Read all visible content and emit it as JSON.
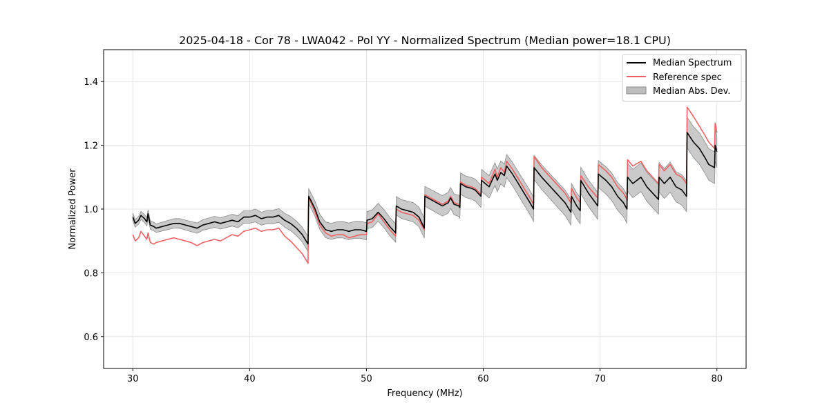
{
  "chart_data": {
    "type": "line",
    "title": "2025-04-18 - Cor 78 - LWA042 - Pol YY - Normalized Spectrum (Median power=18.1 CPU)",
    "xlabel": "Frequency (MHz)",
    "ylabel": "Normalized Power",
    "xlim": [
      27.5,
      82.5
    ],
    "ylim": [
      0.5,
      1.5
    ],
    "xticks": [
      30,
      40,
      50,
      60,
      70,
      80
    ],
    "yticks": [
      0.6,
      0.8,
      1.0,
      1.2,
      1.4
    ],
    "xtick_labels": [
      "30",
      "40",
      "50",
      "60",
      "70",
      "80"
    ],
    "ytick_labels": [
      "0.6",
      "0.8",
      "1.0",
      "1.2",
      "1.4"
    ],
    "grid": true,
    "legend_position": "top-right",
    "colors": {
      "median": "#000000",
      "reference": "#f06262",
      "mad_fill": "#bdbdbd",
      "mad_edge": "#8a8a8a",
      "grid": "#e4e4e4"
    },
    "series": [
      {
        "name": "Median Spectrum",
        "x": [
          30.0,
          30.2,
          30.5,
          30.7,
          31.0,
          31.2,
          31.3,
          31.5,
          31.8,
          32.0,
          32.5,
          33.0,
          33.5,
          34.0,
          34.5,
          35.0,
          35.5,
          36.0,
          36.5,
          37.0,
          37.5,
          38.0,
          38.5,
          39.0,
          39.5,
          40.0,
          40.5,
          41.0,
          41.5,
          42.0,
          42.5,
          43.0,
          43.5,
          44.0,
          44.5,
          45.0,
          45.05,
          45.2,
          45.6,
          46.0,
          46.5,
          47.0,
          47.5,
          48.0,
          48.5,
          49.0,
          49.5,
          50.0,
          50.05,
          50.5,
          51.0,
          51.5,
          52.0,
          52.5,
          52.55,
          53.0,
          53.5,
          54.0,
          54.5,
          54.95,
          55.0,
          55.5,
          56.0,
          56.5,
          57.0,
          57.2,
          57.5,
          57.9,
          58.0,
          58.05,
          58.5,
          59.0,
          59.3,
          59.8,
          59.85,
          60.5,
          61.0,
          61.2,
          61.5,
          61.8,
          62.0,
          62.5,
          63.0,
          63.5,
          64.0,
          64.3,
          64.35,
          65.0,
          66.0,
          67.0,
          67.5,
          67.55,
          68.0,
          68.3,
          68.35,
          69.0,
          69.8,
          69.85,
          70.5,
          71.0,
          71.5,
          72.0,
          72.3,
          72.35,
          72.8,
          73.5,
          74.0,
          75.0,
          75.05,
          75.5,
          76.0,
          76.5,
          77.0,
          77.4,
          77.45,
          78.0,
          78.5,
          79.0,
          79.3,
          79.8,
          79.85,
          80.0
        ],
        "values": [
          0.975,
          0.955,
          0.965,
          0.98,
          0.97,
          0.96,
          0.985,
          0.95,
          0.945,
          0.94,
          0.945,
          0.95,
          0.955,
          0.955,
          0.95,
          0.945,
          0.94,
          0.95,
          0.955,
          0.96,
          0.955,
          0.96,
          0.965,
          0.96,
          0.975,
          0.975,
          0.98,
          0.97,
          0.975,
          0.975,
          0.98,
          0.965,
          0.955,
          0.94,
          0.92,
          0.89,
          1.04,
          1.03,
          1.0,
          0.96,
          0.935,
          0.93,
          0.935,
          0.935,
          0.93,
          0.935,
          0.935,
          0.93,
          0.965,
          0.97,
          0.99,
          0.97,
          0.945,
          0.925,
          1.01,
          1.0,
          0.995,
          0.99,
          0.975,
          0.94,
          1.04,
          1.03,
          1.02,
          1.01,
          1.02,
          1.035,
          1.015,
          1.01,
          1.005,
          1.08,
          1.07,
          1.065,
          1.06,
          1.04,
          1.09,
          1.07,
          1.11,
          1.09,
          1.115,
          1.105,
          1.135,
          1.11,
          1.08,
          1.05,
          1.02,
          1.0,
          1.13,
          1.1,
          1.06,
          1.02,
          0.99,
          1.04,
          1.01,
          0.995,
          1.09,
          1.05,
          1.01,
          1.11,
          1.09,
          1.07,
          1.04,
          1.02,
          1.0,
          1.1,
          1.08,
          1.1,
          1.07,
          1.03,
          1.1,
          1.08,
          1.1,
          1.07,
          1.06,
          1.04,
          1.24,
          1.21,
          1.19,
          1.16,
          1.14,
          1.13,
          1.2,
          1.18
        ]
      },
      {
        "name": "Reference spec",
        "x": [
          30.0,
          30.2,
          30.5,
          30.7,
          31.0,
          31.2,
          31.3,
          31.5,
          31.8,
          32.0,
          32.5,
          33.0,
          33.5,
          34.0,
          34.5,
          35.0,
          35.5,
          36.0,
          36.5,
          37.0,
          37.5,
          38.0,
          38.5,
          39.0,
          39.5,
          40.0,
          40.5,
          41.0,
          41.5,
          42.0,
          42.5,
          43.0,
          43.5,
          44.0,
          44.5,
          45.0,
          45.05,
          45.2,
          45.6,
          46.0,
          46.5,
          47.0,
          47.5,
          48.0,
          48.5,
          49.0,
          49.5,
          50.0,
          50.05,
          50.5,
          51.0,
          51.5,
          52.0,
          52.5,
          52.55,
          53.0,
          53.5,
          54.0,
          54.5,
          54.95,
          55.0,
          55.5,
          56.0,
          56.5,
          57.0,
          57.2,
          57.5,
          57.9,
          58.0,
          58.05,
          58.5,
          59.0,
          59.3,
          59.8,
          59.85,
          60.5,
          61.0,
          61.2,
          61.5,
          61.8,
          62.0,
          62.5,
          63.0,
          63.5,
          64.0,
          64.3,
          64.35,
          65.0,
          66.0,
          67.0,
          67.5,
          67.55,
          68.0,
          68.3,
          68.35,
          69.0,
          69.8,
          69.85,
          70.5,
          71.0,
          71.5,
          72.0,
          72.3,
          72.35,
          72.8,
          73.5,
          74.0,
          75.0,
          75.05,
          75.5,
          76.0,
          76.5,
          77.0,
          77.4,
          77.45,
          78.0,
          78.5,
          79.0,
          79.3,
          79.8,
          79.85,
          80.0
        ],
        "values": [
          0.92,
          0.9,
          0.91,
          0.93,
          0.915,
          0.905,
          0.925,
          0.895,
          0.89,
          0.895,
          0.9,
          0.905,
          0.91,
          0.905,
          0.9,
          0.895,
          0.885,
          0.895,
          0.9,
          0.905,
          0.9,
          0.91,
          0.92,
          0.915,
          0.93,
          0.935,
          0.94,
          0.93,
          0.935,
          0.935,
          0.94,
          0.915,
          0.9,
          0.88,
          0.86,
          0.83,
          1.04,
          1.025,
          0.99,
          0.95,
          0.925,
          0.915,
          0.92,
          0.92,
          0.91,
          0.915,
          0.92,
          0.92,
          0.955,
          0.96,
          0.985,
          0.96,
          0.935,
          0.915,
          1.0,
          0.99,
          0.985,
          0.98,
          0.965,
          0.935,
          1.045,
          1.035,
          1.025,
          1.015,
          1.025,
          1.04,
          1.02,
          1.015,
          1.01,
          1.085,
          1.075,
          1.07,
          1.065,
          1.045,
          1.1,
          1.08,
          1.125,
          1.1,
          1.13,
          1.115,
          1.15,
          1.125,
          1.095,
          1.065,
          1.035,
          1.015,
          1.165,
          1.13,
          1.09,
          1.05,
          1.02,
          1.065,
          1.035,
          1.02,
          1.105,
          1.07,
          1.035,
          1.14,
          1.12,
          1.1,
          1.07,
          1.05,
          1.03,
          1.155,
          1.135,
          1.15,
          1.12,
          1.08,
          1.14,
          1.12,
          1.14,
          1.11,
          1.1,
          1.08,
          1.32,
          1.29,
          1.26,
          1.23,
          1.21,
          1.19,
          1.27,
          1.24
        ]
      }
    ],
    "mad_band": {
      "name": "Median Abs. Dev.",
      "half_width_start": 0.012,
      "half_width_end": 0.05
    },
    "legend": [
      "Median Spectrum",
      "Reference spec",
      "Median Abs. Dev."
    ]
  }
}
